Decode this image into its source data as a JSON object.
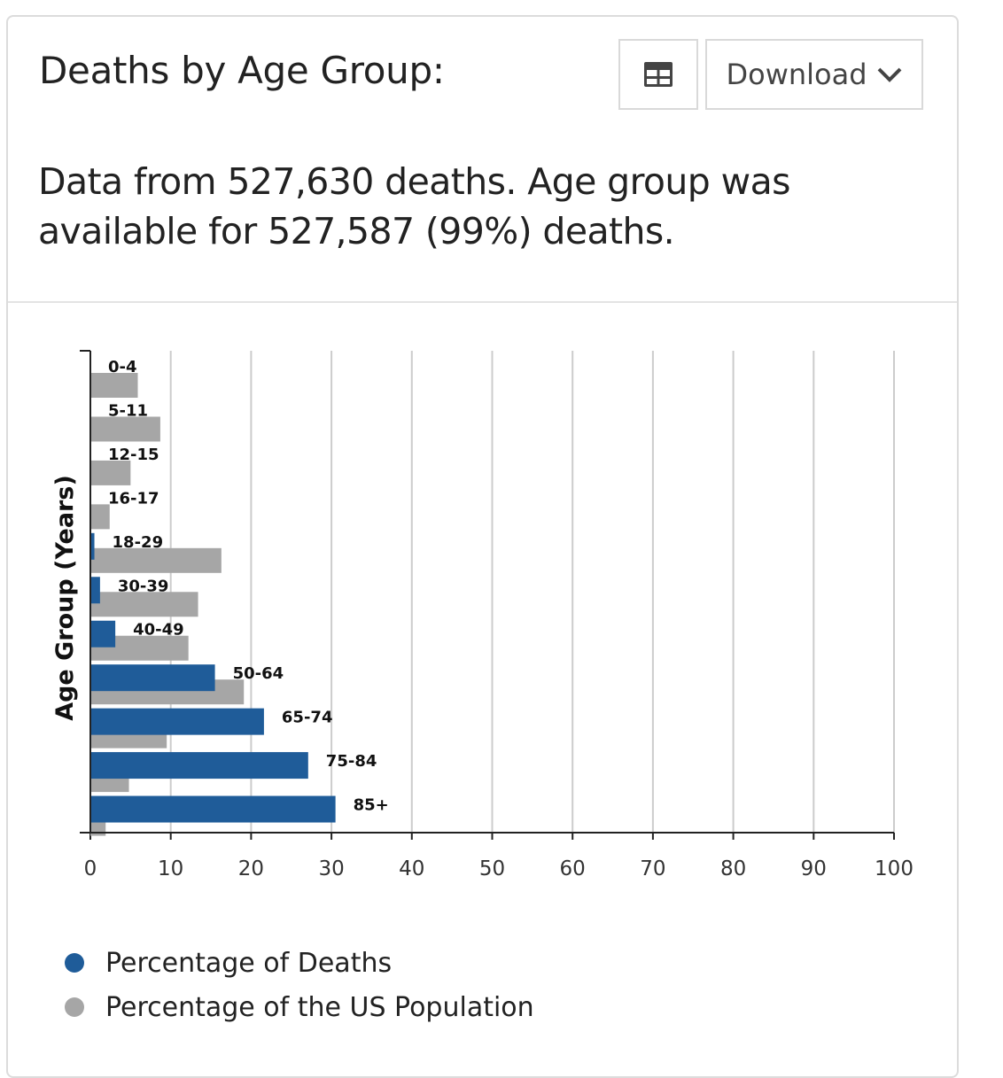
{
  "header": {
    "title": "Deaths by Age Group:",
    "download_label": "Download"
  },
  "summary": "Data from 527,630 deaths. Age group was available for 527,587 (99%) deaths.",
  "icons": {
    "table": "table-icon",
    "chevron": "chevron-down-icon"
  },
  "colors": {
    "deaths": "#1f5c99",
    "population": "#a6a6a6"
  },
  "legend": [
    {
      "label": "Percentage of Deaths",
      "color": "#1f5c99"
    },
    {
      "label": "Percentage of the US Population",
      "color": "#a6a6a6"
    }
  ],
  "chart_data": {
    "type": "bar",
    "orientation": "horizontal",
    "ylabel": "Age Group (Years)",
    "xlabel": "",
    "xlim": [
      0,
      100
    ],
    "xticks": [
      0,
      10,
      20,
      30,
      40,
      50,
      60,
      70,
      80,
      90,
      100
    ],
    "grid": true,
    "legend_position": "bottom",
    "categories": [
      "0-4",
      "5-11",
      "12-15",
      "16-17",
      "18-29",
      "30-39",
      "40-49",
      "50-64",
      "65-74",
      "75-84",
      "85+"
    ],
    "series": [
      {
        "name": "Percentage of Deaths",
        "values": [
          0,
          0,
          0,
          0,
          0.5,
          1.2,
          3.1,
          15.5,
          21.6,
          27.1,
          30.5
        ]
      },
      {
        "name": "Percentage of the US Population",
        "values": [
          5.9,
          8.7,
          5.0,
          2.4,
          16.3,
          13.4,
          12.2,
          19.1,
          9.5,
          4.8,
          1.9
        ]
      }
    ]
  }
}
